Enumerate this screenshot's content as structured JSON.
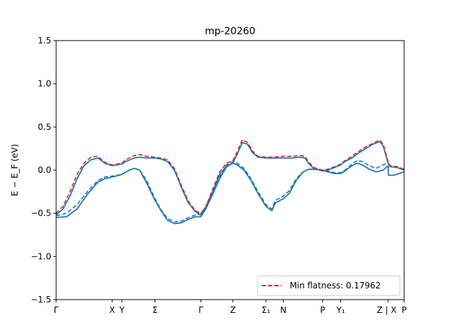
{
  "chart_data": {
    "type": "line",
    "title": "mp-20260",
    "ylabel": "E − E_F (eV)",
    "ylim": [
      -1.5,
      1.5
    ],
    "xlim": [
      0,
      100
    ],
    "grid": false,
    "legend_placement": "bottom-right",
    "yticks": [
      -1.5,
      -1.0,
      -0.5,
      0.0,
      0.5,
      1.0,
      1.5
    ],
    "ytick_labels": [
      "−1.5",
      "−1.0",
      "−0.5",
      "0.0",
      "0.5",
      "1.0",
      "1.5"
    ],
    "kpoints": [
      {
        "x": 0,
        "label": "Γ"
      },
      {
        "x": 16.1,
        "label": "X"
      },
      {
        "x": 18.9,
        "label": "Y"
      },
      {
        "x": 28.4,
        "label": "Σ"
      },
      {
        "x": 41.6,
        "label": "Γ"
      },
      {
        "x": 50.8,
        "label": "Z"
      },
      {
        "x": 60.3,
        "label": "Σ₁"
      },
      {
        "x": 65.3,
        "label": "N"
      },
      {
        "x": 76.6,
        "label": "P"
      },
      {
        "x": 81.8,
        "label": "Y₁"
      },
      {
        "x": 95.4,
        "label": "Z | X"
      },
      {
        "x": 100,
        "label": "P"
      }
    ],
    "series": [
      {
        "name": "",
        "style": "solid",
        "color": "#1f77b4",
        "points": [
          [
            0,
            -0.55
          ],
          [
            3,
            -0.54
          ],
          [
            6,
            -0.45
          ],
          [
            9,
            -0.28
          ],
          [
            12,
            -0.14
          ],
          [
            14,
            -0.1
          ],
          [
            16.1,
            -0.08
          ],
          [
            18.9,
            -0.05
          ],
          [
            21,
            0.0
          ],
          [
            22.5,
            0.02
          ],
          [
            24,
            0.0
          ],
          [
            26,
            -0.15
          ],
          [
            28.4,
            -0.35
          ],
          [
            30,
            -0.46
          ],
          [
            32,
            -0.58
          ],
          [
            34,
            -0.62
          ],
          [
            36,
            -0.61
          ],
          [
            38,
            -0.57
          ],
          [
            40,
            -0.54
          ],
          [
            41.6,
            -0.54
          ],
          [
            43,
            -0.45
          ],
          [
            45,
            -0.28
          ],
          [
            47,
            -0.1
          ],
          [
            49,
            0.04
          ],
          [
            50.8,
            0.08
          ],
          [
            52,
            0.06
          ],
          [
            54,
            0.0
          ],
          [
            56,
            -0.12
          ],
          [
            58,
            -0.27
          ],
          [
            60.3,
            -0.42
          ],
          [
            62,
            -0.47
          ],
          [
            63,
            -0.38
          ],
          [
            65.3,
            -0.33
          ],
          [
            67,
            -0.27
          ],
          [
            69,
            -0.12
          ],
          [
            71,
            -0.02
          ],
          [
            72.5,
            0.01
          ],
          [
            74,
            0.01
          ],
          [
            76.6,
            0.0
          ],
          [
            78,
            -0.02
          ],
          [
            80,
            -0.04
          ],
          [
            81.8,
            -0.04
          ],
          [
            83,
            -0.01
          ],
          [
            85,
            0.05
          ],
          [
            86.5,
            0.08
          ],
          [
            88,
            0.06
          ],
          [
            90,
            0.01
          ],
          [
            92,
            -0.02
          ],
          [
            94,
            0.0
          ],
          [
            95.4,
            0.05
          ],
          [
            95.5,
            -0.06
          ],
          [
            97,
            -0.06
          ],
          [
            100,
            -0.02
          ]
        ]
      },
      {
        "name": "",
        "style": "solid",
        "color": "#1f77b4",
        "points": [
          [
            0,
            -0.52
          ],
          [
            2,
            -0.45
          ],
          [
            4,
            -0.3
          ],
          [
            6,
            -0.1
          ],
          [
            8,
            0.05
          ],
          [
            10,
            0.12
          ],
          [
            12,
            0.14
          ],
          [
            14,
            0.08
          ],
          [
            16.1,
            0.05
          ],
          [
            18.9,
            0.07
          ],
          [
            20,
            0.1
          ],
          [
            22.5,
            0.14
          ],
          [
            24,
            0.15
          ],
          [
            26,
            0.14
          ],
          [
            28.4,
            0.14
          ],
          [
            30,
            0.13
          ],
          [
            32,
            0.1
          ],
          [
            34,
            0.0
          ],
          [
            36,
            -0.2
          ],
          [
            38,
            -0.38
          ],
          [
            40,
            -0.48
          ],
          [
            41.6,
            -0.52
          ],
          [
            43,
            -0.45
          ],
          [
            45,
            -0.25
          ],
          [
            47,
            -0.05
          ],
          [
            49,
            0.05
          ],
          [
            50.8,
            0.08
          ],
          [
            52,
            0.18
          ],
          [
            53.5,
            0.32
          ],
          [
            55,
            0.3
          ],
          [
            56.5,
            0.2
          ],
          [
            58,
            0.15
          ],
          [
            60.3,
            0.14
          ],
          [
            62,
            0.14
          ],
          [
            65.3,
            0.14
          ],
          [
            68,
            0.14
          ],
          [
            70,
            0.15
          ],
          [
            71.5,
            0.14
          ],
          [
            72.5,
            0.08
          ],
          [
            74,
            0.02
          ],
          [
            76.6,
            -0.01
          ],
          [
            78,
            0.0
          ],
          [
            80,
            0.03
          ],
          [
            81.8,
            0.06
          ],
          [
            83,
            0.1
          ],
          [
            85,
            0.14
          ],
          [
            87,
            0.2
          ],
          [
            89,
            0.25
          ],
          [
            91,
            0.3
          ],
          [
            93,
            0.33
          ],
          [
            94,
            0.28
          ],
          [
            95.4,
            0.08
          ],
          [
            96,
            0.04
          ],
          [
            98,
            0.03
          ],
          [
            100,
            0.0
          ]
        ]
      },
      {
        "name": "",
        "style": "dashed",
        "color": "#1f77b4",
        "points": [
          [
            0,
            -0.53
          ],
          [
            3,
            -0.5
          ],
          [
            6,
            -0.4
          ],
          [
            9,
            -0.25
          ],
          [
            12,
            -0.12
          ],
          [
            14,
            -0.08
          ],
          [
            16.1,
            -0.07
          ],
          [
            18.9,
            -0.05
          ],
          [
            21,
            0.0
          ],
          [
            22.5,
            0.02
          ],
          [
            24,
            0.0
          ],
          [
            26,
            -0.12
          ],
          [
            28.4,
            -0.33
          ],
          [
            30,
            -0.45
          ],
          [
            32,
            -0.56
          ],
          [
            34,
            -0.6
          ],
          [
            36,
            -0.59
          ],
          [
            38,
            -0.55
          ],
          [
            40,
            -0.52
          ],
          [
            41.6,
            -0.51
          ],
          [
            43,
            -0.42
          ],
          [
            45,
            -0.25
          ],
          [
            47,
            -0.08
          ],
          [
            49,
            0.06
          ],
          [
            50.8,
            0.1
          ],
          [
            52,
            0.08
          ],
          [
            54,
            0.02
          ],
          [
            56,
            -0.1
          ],
          [
            58,
            -0.25
          ],
          [
            60.3,
            -0.4
          ],
          [
            62,
            -0.45
          ],
          [
            63,
            -0.35
          ],
          [
            65.3,
            -0.3
          ],
          [
            67,
            -0.24
          ],
          [
            69,
            -0.1
          ],
          [
            71,
            -0.02
          ],
          [
            72.5,
            0.01
          ],
          [
            74,
            0.01
          ],
          [
            76.6,
            0.0
          ],
          [
            78,
            -0.01
          ],
          [
            80,
            -0.03
          ],
          [
            81.8,
            -0.03
          ],
          [
            83,
            0.0
          ],
          [
            85,
            0.07
          ],
          [
            86.5,
            0.11
          ],
          [
            88,
            0.1
          ],
          [
            90,
            0.05
          ],
          [
            92,
            0.02
          ],
          [
            94,
            0.06
          ],
          [
            95.4,
            0.09
          ]
        ]
      },
      {
        "name": "Min flatness: 0.17962",
        "style": "dashed",
        "color": "#d62728",
        "points": [
          [
            0,
            -0.5
          ],
          [
            2,
            -0.42
          ],
          [
            4,
            -0.25
          ],
          [
            6,
            -0.05
          ],
          [
            8,
            0.08
          ],
          [
            10,
            0.15
          ],
          [
            12,
            0.16
          ],
          [
            14,
            0.09
          ],
          [
            16.1,
            0.06
          ],
          [
            18.9,
            0.08
          ],
          [
            20,
            0.12
          ],
          [
            22.5,
            0.17
          ],
          [
            24,
            0.18
          ],
          [
            26,
            0.16
          ],
          [
            28.4,
            0.15
          ],
          [
            30,
            0.14
          ],
          [
            32,
            0.12
          ],
          [
            34,
            0.02
          ],
          [
            36,
            -0.18
          ],
          [
            38,
            -0.36
          ],
          [
            40,
            -0.47
          ],
          [
            41.6,
            -0.5
          ],
          [
            43,
            -0.43
          ],
          [
            45,
            -0.22
          ],
          [
            47,
            -0.02
          ],
          [
            49,
            0.08
          ],
          [
            50.8,
            0.11
          ],
          [
            52,
            0.21
          ],
          [
            53.5,
            0.35
          ],
          [
            55,
            0.32
          ],
          [
            56.5,
            0.22
          ],
          [
            58,
            0.16
          ],
          [
            60.3,
            0.15
          ],
          [
            62,
            0.15
          ],
          [
            65.3,
            0.16
          ],
          [
            68,
            0.16
          ],
          [
            70,
            0.17
          ],
          [
            71.5,
            0.16
          ],
          [
            72.5,
            0.1
          ],
          [
            74,
            0.03
          ],
          [
            76.6,
            0.0
          ],
          [
            78,
            0.01
          ],
          [
            80,
            0.04
          ],
          [
            81.8,
            0.07
          ],
          [
            83,
            0.11
          ],
          [
            85,
            0.16
          ],
          [
            87,
            0.22
          ],
          [
            89,
            0.27
          ],
          [
            91,
            0.31
          ],
          [
            93,
            0.35
          ],
          [
            94,
            0.3
          ],
          [
            95.4,
            0.1
          ],
          [
            96,
            0.05
          ],
          [
            98,
            0.04
          ],
          [
            100,
            0.01
          ]
        ]
      }
    ]
  }
}
